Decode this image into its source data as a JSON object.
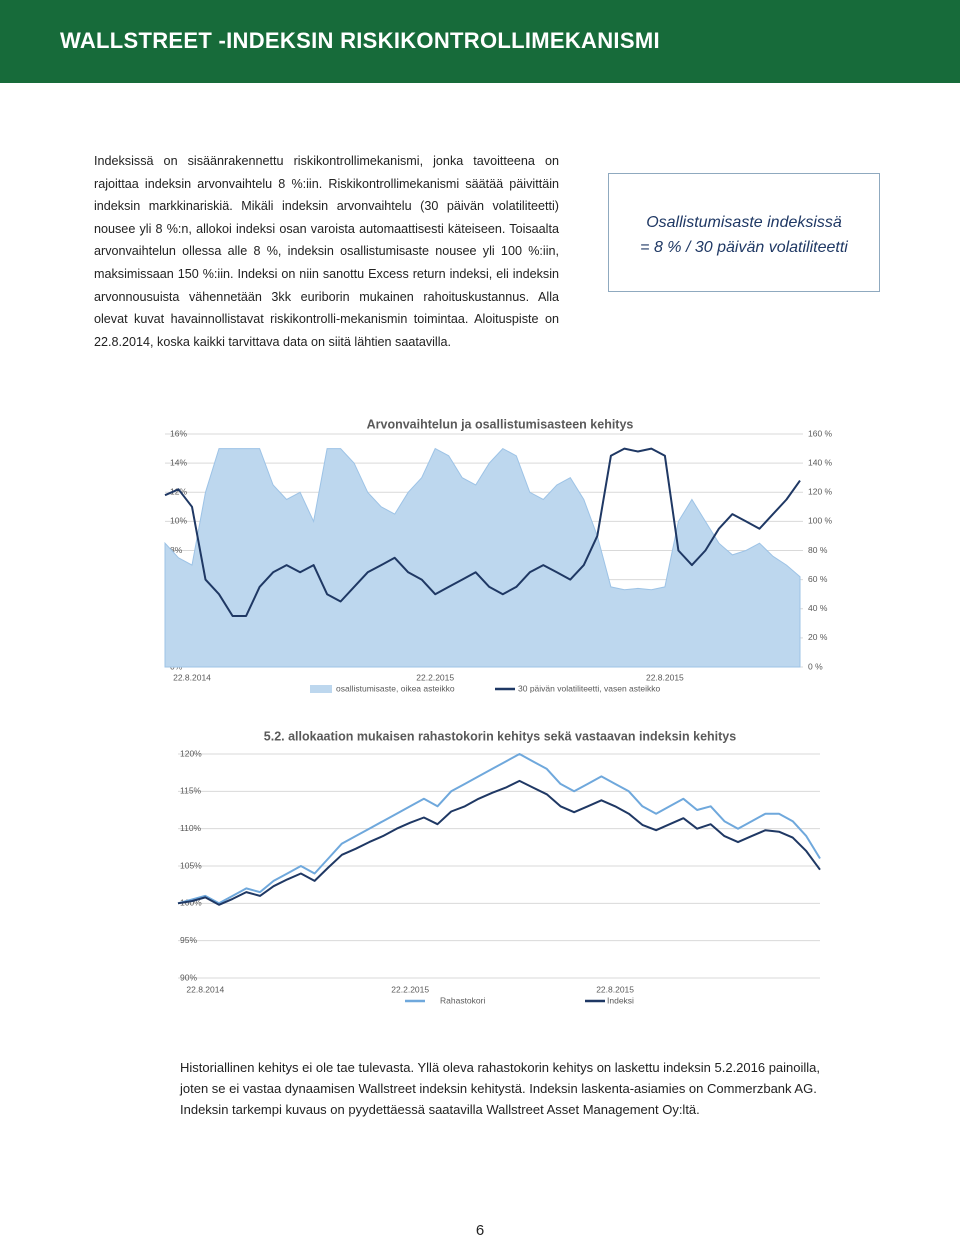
{
  "header": {
    "title": "WALLSTREET -INDEKSIN RISKIKONTROLLIMEKANISMI"
  },
  "body": "Indeksissä on sisäänrakennettu riskikontrollimekanismi, jonka tavoitteena on rajoittaa indeksin arvonvaihtelu 8 %:iin. Riskikontrollimekanismi säätää päivittäin indeksin markkinariskiä. Mikäli indeksin arvonvaihtelu (30 päivän volatiliteetti) nousee yli 8 %:n, allokoi indeksi osan varoista automaattisesti käteiseen. Toisaalta arvonvaihtelun ollessa alle 8 %, indeksin osallistumisaste nousee yli 100 %:iin, maksimissaan 150 %:iin. Indeksi on niin sanottu Excess return indeksi, eli indeksin arvonnousuista vähennetään 3kk euriborin mukainen rahoituskustannus. Alla olevat kuvat havainnollistavat riskikontrolli-mekanismin toimintaa. Aloituspiste on 22.8.2014, koska kaikki tarvittava data on siitä lähtien saatavilla.",
  "formula": {
    "lines": [
      "Osallistumisaste indeksissä",
      "= 8 % / 30 päivän volatiliteetti"
    ]
  },
  "chart_data": [
    {
      "type": "line",
      "title": "Arvonvaihtelun ja osallistumisasteen kehitys",
      "categories": [
        null,
        null,
        "22.8.2014",
        null,
        null,
        null,
        null,
        null,
        null,
        null,
        null,
        null,
        null,
        null,
        null,
        null,
        null,
        null,
        null,
        null,
        "22.2.2015",
        null,
        null,
        null,
        null,
        null,
        null,
        null,
        null,
        null,
        null,
        null,
        null,
        null,
        null,
        null,
        null,
        "22.8.2015",
        null,
        null,
        null,
        null,
        null,
        null,
        null,
        null,
        null,
        null
      ],
      "ylim": [
        0,
        16
      ],
      "yticks": [
        {
          "value": 0,
          "label": "0%"
        },
        {
          "value": 2,
          "label": "2%"
        },
        {
          "value": 4,
          "label": "4%"
        },
        {
          "value": 6,
          "label": "6%"
        },
        {
          "value": 8,
          "label": "8%"
        },
        {
          "value": 10,
          "label": "10%"
        },
        {
          "value": 12,
          "label": "12%"
        },
        {
          "value": 14,
          "label": "14%"
        },
        {
          "value": 16,
          "label": "16%"
        }
      ],
      "y2lim": [
        0,
        160
      ],
      "y2ticks": [
        {
          "value": 0,
          "label": "0 %"
        },
        {
          "value": 20,
          "label": "20 %"
        },
        {
          "value": 40,
          "label": "40 %"
        },
        {
          "value": 60,
          "label": "60 %"
        },
        {
          "value": 80,
          "label": "80 %"
        },
        {
          "value": 100,
          "label": "100 %"
        },
        {
          "value": 120,
          "label": "120 %"
        },
        {
          "value": 140,
          "label": "140 %"
        },
        {
          "value": 160,
          "label": "160 %"
        }
      ],
      "grid": true,
      "series": [
        {
          "name": "osallistumisaste, oikea asteikko",
          "kind": "area",
          "axis": "y2",
          "color": "#bdd7ee",
          "values": [
            85,
            75,
            70,
            120,
            150,
            150,
            150,
            150,
            125,
            115,
            120,
            100,
            150,
            150,
            140,
            120,
            110,
            105,
            120,
            130,
            150,
            145,
            130,
            125,
            140,
            150,
            145,
            120,
            115,
            125,
            130,
            115,
            90,
            55,
            53,
            54,
            53,
            55,
            100,
            115,
            100,
            85,
            77,
            80,
            85,
            76,
            70,
            62
          ]
        },
        {
          "name": "30 päivän volatiliteetti, vasen asteikko",
          "kind": "line",
          "color": "#1f3864",
          "values": [
            11.8,
            12.2,
            11,
            6,
            5,
            3.5,
            3.5,
            5.5,
            6.5,
            7,
            6.5,
            7,
            5,
            4.5,
            5.5,
            6.5,
            7,
            7.5,
            6.5,
            6,
            5,
            5.5,
            6,
            6.5,
            5.5,
            5,
            5.5,
            6.5,
            7,
            6.5,
            6,
            7,
            9,
            14.5,
            15,
            14.8,
            15,
            14.5,
            8,
            7,
            8,
            9.5,
            10.5,
            10,
            9.5,
            10.5,
            11.5,
            12.8
          ]
        }
      ]
    },
    {
      "type": "line",
      "title": "5.2. allokaation mukaisen rahastokorin kehitys sekä vastaavan indeksin kehitys",
      "categories": [
        null,
        null,
        "22.8.2014",
        null,
        null,
        null,
        null,
        null,
        null,
        null,
        null,
        null,
        null,
        null,
        null,
        null,
        null,
        "22.2.2015",
        null,
        null,
        null,
        null,
        null,
        null,
        null,
        null,
        null,
        null,
        null,
        null,
        null,
        null,
        "22.8.2015",
        null,
        null,
        null,
        null,
        null,
        null,
        null,
        null,
        null,
        null,
        null,
        null,
        null,
        null,
        null
      ],
      "ylim": [
        90,
        120
      ],
      "yticks": [
        {
          "value": 90,
          "label": "90%"
        },
        {
          "value": 95,
          "label": "95%"
        },
        {
          "value": 100,
          "label": "100%"
        },
        {
          "value": 105,
          "label": "105%"
        },
        {
          "value": 110,
          "label": "110%"
        },
        {
          "value": 115,
          "label": "115%"
        },
        {
          "value": 120,
          "label": "120%"
        }
      ],
      "grid": true,
      "series": [
        {
          "name": "Rahastokori",
          "kind": "line",
          "color": "#6fa8dc",
          "values": [
            100,
            100.5,
            101,
            100,
            101,
            102,
            101.5,
            103,
            104,
            105,
            104,
            106,
            108,
            109,
            110,
            111,
            112,
            113,
            114,
            113,
            115,
            116,
            117,
            118,
            119,
            120,
            119,
            118,
            116,
            115,
            116,
            117,
            116,
            115,
            113,
            112,
            113,
            114,
            112.5,
            113,
            111,
            110,
            111,
            112,
            112,
            111,
            109,
            106
          ]
        },
        {
          "name": "Indeksi",
          "kind": "line",
          "color": "#1f3864",
          "values": [
            100,
            100.3,
            100.8,
            99.8,
            100.6,
            101.5,
            101,
            102.3,
            103.2,
            104,
            103,
            104.8,
            106.5,
            107.3,
            108.2,
            109,
            110,
            110.8,
            111.5,
            110.6,
            112.3,
            113,
            114,
            114.8,
            115.5,
            116.4,
            115.5,
            114.6,
            113,
            112.2,
            113,
            113.8,
            113,
            112,
            110.5,
            109.8,
            110.6,
            111.4,
            110,
            110.6,
            109,
            108.2,
            109,
            109.8,
            109.6,
            108.8,
            107,
            104.5
          ]
        }
      ]
    }
  ],
  "footer": {
    "lines": [
      "Historiallinen kehitys ei ole tae tulevasta. Yllä oleva rahastokorin kehitys on laskettu indeksin 5.2.2016 painoilla,",
      "joten se ei vastaa dynaamisen Wallstreet indeksin kehitystä. Indeksin laskenta-asiamies on Commerzbank AG.",
      "Indeksin tarkempi kuvaus on pyydettäessä saatavilla Wallstreet Asset Management Oy:ltä."
    ]
  },
  "page_number": 6
}
